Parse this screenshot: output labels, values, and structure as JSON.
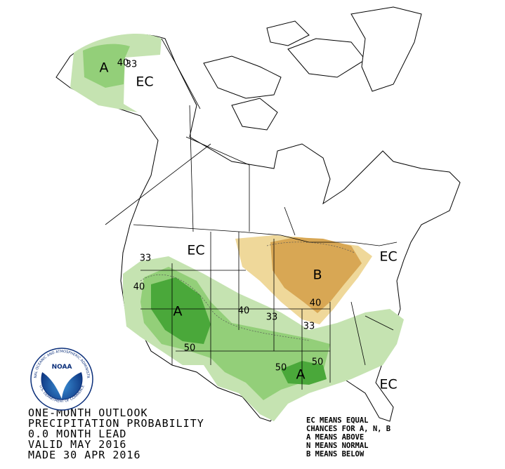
{
  "map_labels": [
    {
      "label": "A"
    },
    {
      "label": "40"
    },
    {
      "label": "33"
    },
    {
      "label": "EC"
    },
    {
      "label": "EC"
    },
    {
      "label": "33"
    },
    {
      "label": "40"
    },
    {
      "label": "A"
    },
    {
      "label": "50"
    },
    {
      "label": "40"
    },
    {
      "label": "33"
    },
    {
      "label": "B"
    },
    {
      "label": "40"
    },
    {
      "label": "33"
    },
    {
      "label": "EC"
    },
    {
      "label": "50"
    },
    {
      "label": "A"
    },
    {
      "label": "50"
    },
    {
      "label": "EC"
    }
  ],
  "caption": {
    "lines": [
      "ONE-MONTH OUTLOOK",
      "PRECIPITATION PROBABILITY",
      "0.0 MONTH LEAD",
      "VALID MAY 2016",
      "MADE 30 APR 2016"
    ]
  },
  "legend": {
    "lines": [
      "EC MEANS EQUAL",
      "CHANCES FOR A, N, B",
      "A MEANS ABOVE",
      "N MEANS NORMAL",
      "B MEANS BELOW"
    ]
  },
  "logo": {
    "name": "NOAA",
    "ring_top": "NATIONAL OCEANIC AND ATMOSPHERIC ADMINISTRATION",
    "ring_bottom": "U.S. DEPARTMENT OF COMMERCE"
  }
}
